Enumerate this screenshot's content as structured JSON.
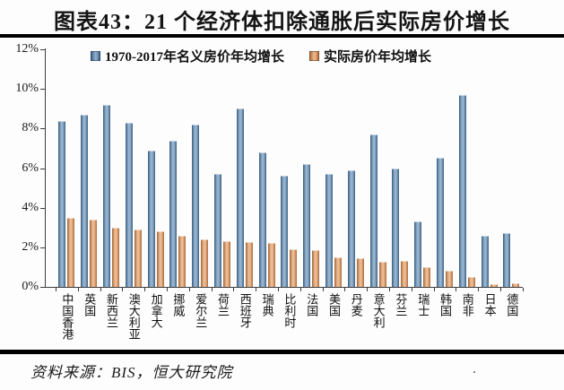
{
  "header": {
    "title": "图表43：21 个经济体扣除通胀后实际房价增长"
  },
  "footer": {
    "source": "资料来源：BIS，恒大研究院",
    "stray_mark": "."
  },
  "colors": {
    "nominal_series": "#4e7fae",
    "real_series": "#e08c4a",
    "axis": "#3d3d3d",
    "rule": "#000000"
  },
  "chart_data": {
    "type": "bar",
    "title": "图表43：21 个经济体扣除通胀后实际房价增长",
    "categories": [
      "中国香港",
      "英国",
      "新西兰",
      "澳大利亚",
      "加拿大",
      "挪威",
      "爱尔兰",
      "荷兰",
      "西班牙",
      "瑞典",
      "比利时",
      "法国",
      "美国",
      "丹麦",
      "意大利",
      "芬兰",
      "瑞士",
      "韩国",
      "南非",
      "日本",
      "德国"
    ],
    "series": [
      {
        "name": "1970-2017年名义房价年均增长",
        "color": "#4e7fae",
        "values": [
          8.4,
          8.7,
          9.2,
          8.3,
          6.9,
          7.4,
          8.2,
          5.7,
          9.0,
          6.8,
          5.6,
          6.2,
          5.7,
          5.9,
          7.7,
          6.0,
          3.3,
          6.5,
          9.7,
          2.6,
          2.7
        ]
      },
      {
        "name": "实际房价年均增长",
        "color": "#e08c4a",
        "values": [
          3.5,
          3.4,
          3.0,
          2.9,
          2.8,
          2.6,
          2.4,
          2.3,
          2.25,
          2.2,
          1.9,
          1.85,
          1.5,
          1.45,
          1.25,
          1.3,
          1.0,
          0.8,
          0.5,
          0.15,
          0.2
        ]
      }
    ],
    "xlabel": "",
    "ylabel": "",
    "ylim": [
      0,
      12
    ],
    "ytick_values": [
      0,
      2,
      4,
      6,
      8,
      10,
      12
    ],
    "ytick_labels": [
      "0%",
      "2%",
      "4%",
      "6%",
      "8%",
      "10%",
      "12%"
    ],
    "grid": false,
    "legend_position": "top"
  }
}
